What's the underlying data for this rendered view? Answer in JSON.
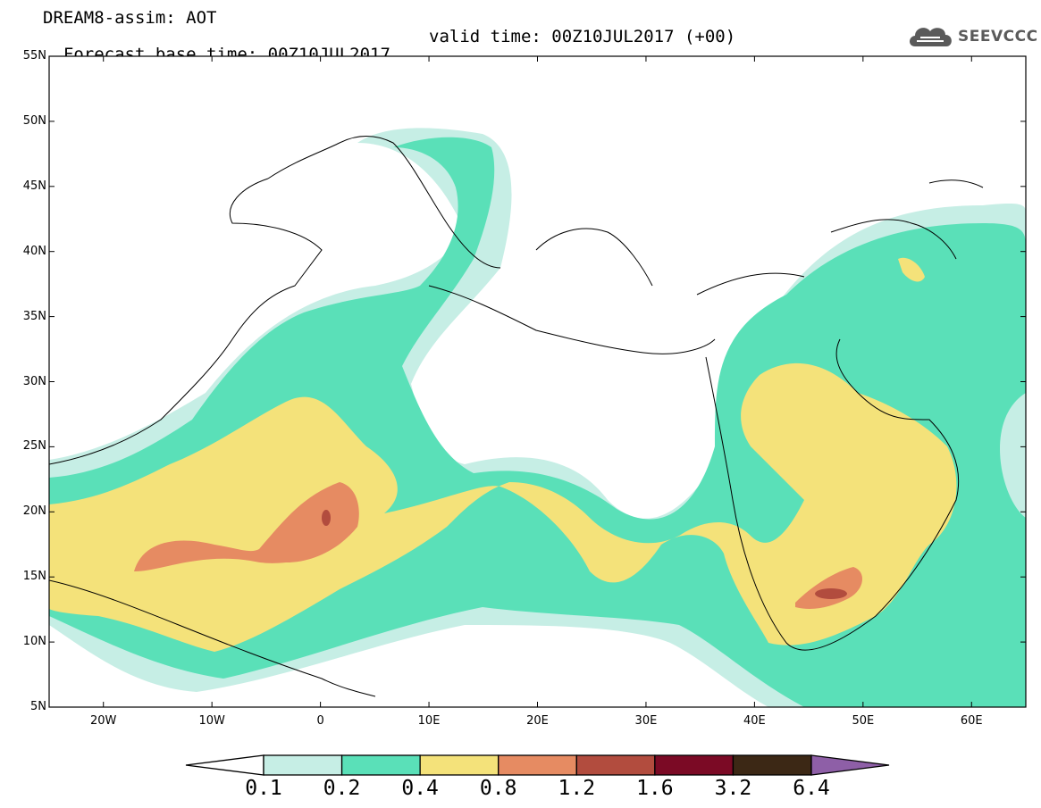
{
  "header": {
    "title": "DREAM8-assim: AOT",
    "base_time": "Forecast base time: 00Z10JUL2017",
    "valid_time": "valid time: 00Z10JUL2017 (+00)"
  },
  "logo": {
    "text": "SEEVCCC",
    "icon": "cloud-icon"
  },
  "map": {
    "region": {
      "lon_min": -25,
      "lon_max": 65,
      "lat_min": 5,
      "lat_max": 55
    },
    "lat_ticks": [
      "5N",
      "10N",
      "15N",
      "20N",
      "25N",
      "30N",
      "35N",
      "40N",
      "45N",
      "50N",
      "55N"
    ],
    "lon_ticks": [
      "20W",
      "10W",
      "0",
      "10E",
      "20E",
      "30E",
      "40E",
      "50E",
      "60E"
    ]
  },
  "colorbar": {
    "colors": [
      "#ffffff",
      "#c6eee5",
      "#5ae0b8",
      "#f4e27a",
      "#e68b62",
      "#b24c3e",
      "#7b0a25",
      "#3c2815",
      "#8e5fa7"
    ],
    "labels": [
      "0.1",
      "0.2",
      "0.4",
      "0.8",
      "1.2",
      "1.6",
      "3.2",
      "6.4"
    ]
  }
}
